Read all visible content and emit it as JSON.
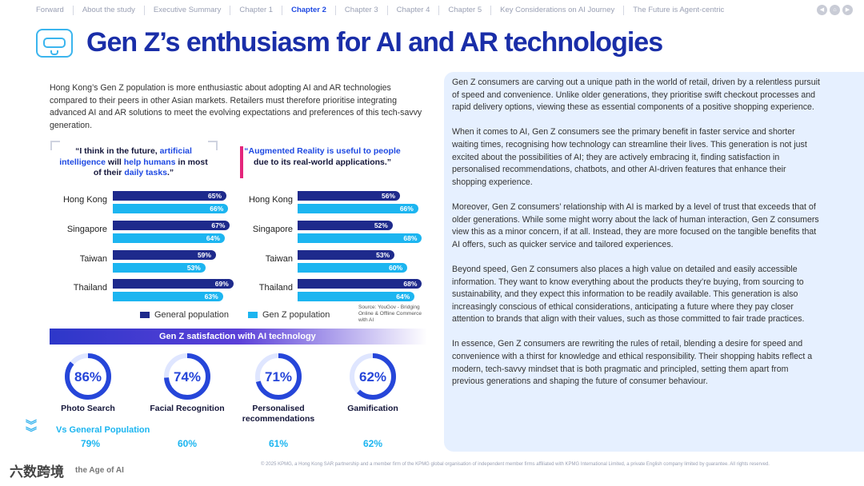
{
  "nav": {
    "items": [
      "Forward",
      "About the study",
      "Executive Summary",
      "Chapter 1",
      "Chapter 2",
      "Chapter 3",
      "Chapter 4",
      "Chapter 5",
      "Key Considerations on AI Journey",
      "The Future is Agent-centric"
    ],
    "active_index": 4
  },
  "title": "Gen Z’s enthusiasm for AI and AR technologies",
  "intro": "Hong Kong’s Gen Z population is more enthusiastic about adopting AI and AR technologies compared to their peers in other Asian markets. Retailers must therefore prioritise integrating advanced AI and AR solutions to meet the evolving expectations and preferences of this tech-savvy generation.",
  "quote_left": {
    "p1": "“I think in the future, ",
    "h1": "artificial intelligence",
    "p2": " will ",
    "h2": "help humans",
    "p3": " in most of their ",
    "h3": "daily tasks",
    "p4": ".”"
  },
  "quote_right": {
    "h1": "“Augmented Reality is useful to people",
    "p1": " due to its real-world applications.”"
  },
  "legend": {
    "general": "General population",
    "genz": "Gen Z population"
  },
  "source": "Source: YouGov - Bridging Online & Offline Commerce with AI",
  "colors": {
    "general": "#1e2a8c",
    "genz": "#1cb5f0",
    "accent": "#1e49e2",
    "pink": "#e4267b"
  },
  "chart_data": [
    {
      "type": "bar",
      "title": "I think in the future, artificial intelligence will help humans in most of their daily tasks",
      "categories": [
        "Hong Kong",
        "Singapore",
        "Taiwan",
        "Thailand"
      ],
      "series": [
        {
          "name": "General population",
          "values": [
            65,
            67,
            59,
            69
          ]
        },
        {
          "name": "Gen Z population",
          "values": [
            66,
            64,
            53,
            63
          ]
        }
      ],
      "unit": "%"
    },
    {
      "type": "bar",
      "title": "Augmented Reality is useful to people due to its real-world applications",
      "categories": [
        "Hong Kong",
        "Singapore",
        "Taiwan",
        "Thailand"
      ],
      "series": [
        {
          "name": "General population",
          "values": [
            56,
            52,
            53,
            68
          ]
        },
        {
          "name": "Gen Z population",
          "values": [
            66,
            68,
            60,
            64
          ]
        }
      ],
      "unit": "%"
    },
    {
      "type": "pie",
      "title": "Gen Z satisfaction with AI technology",
      "categories": [
        "Photo Search",
        "Facial Recognition",
        "Personalised recommendations",
        "Gamification"
      ],
      "values": [
        86,
        74,
        71,
        62
      ],
      "comparison_label": "Vs General Population",
      "comparison_values": [
        79,
        60,
        61,
        62
      ],
      "unit": "%"
    }
  ],
  "right_paragraphs": [
    "Gen Z consumers are carving out a unique path in the world of retail, driven by a relentless pursuit of speed and convenience. Unlike older generations, they prioritise swift checkout processes and rapid delivery options, viewing these as essential components of a positive shopping experience.",
    "When it comes to AI, Gen Z consumers see the primary benefit in faster service and shorter waiting times, recognising how technology can streamline their lives. This generation is not just excited about the possibilities of AI; they are actively embracing it, finding satisfaction in personalised recommendations, chatbots, and other AI-driven features that enhance their shopping experience.",
    "Moreover, Gen Z consumers’ relationship with AI is marked by a level of trust that exceeds that of older generations. While some might worry about the lack of human interaction, Gen Z consumers view this as a minor concern, if at all. Instead, they are more focused on the tangible benefits that AI offers, such as quicker service and tailored experiences.",
    "Beyond speed, Gen Z consumers also places a high value on detailed and easily accessible information. They want to know everything about the products they’re buying, from sourcing to sustainability, and they expect this information to be readily available. This generation is also increasingly conscious of ethical considerations, anticipating a future where they pay closer attention to brands that align with their values, such as those committed to fair trade practices.",
    "In essence, Gen Z consumers are rewriting the rules of retail, blending a desire for speed and convenience with a thirst for knowledge and ethical responsibility. Their shopping habits reflect a modern, tech-savvy mindset that is both pragmatic and principled, setting them apart from previous generations and shaping the future of consumer behaviour."
  ],
  "footer": {
    "brand": "六数跨境",
    "age": "the Age of AI",
    "copyright": "© 2025 KPMG, a Hong Kong SAR partnership and a member firm of the KPMG global organisation of independent member firms affiliated with KPMG International Limited, a private English company limited by guarantee. All rights reserved."
  },
  "icons": {
    "prev": "chevron-left-icon",
    "home": "home-icon",
    "next": "chevron-right-icon",
    "title": "vr-headset-icon"
  }
}
